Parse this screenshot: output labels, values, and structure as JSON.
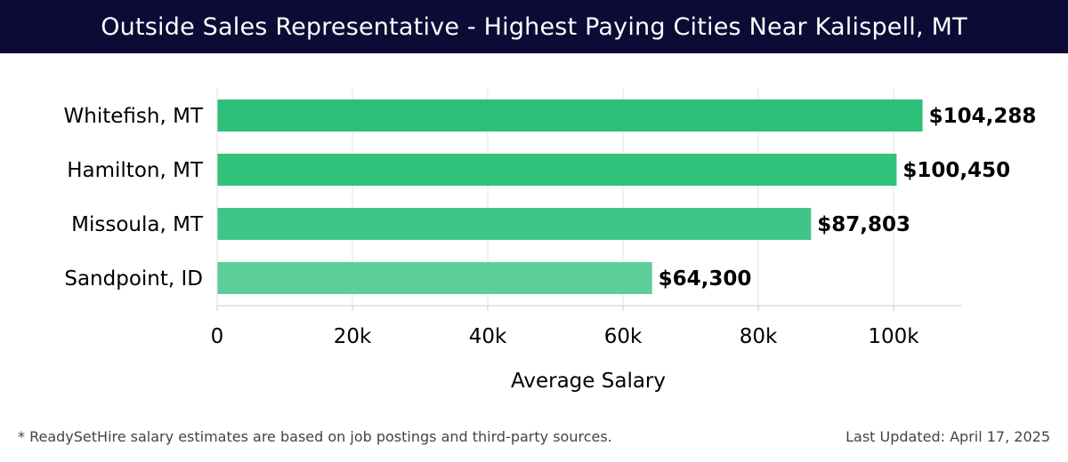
{
  "header": {
    "title": "Outside Sales Representative - Highest Paying Cities Near Kalispell, MT"
  },
  "chart_data": {
    "type": "bar",
    "orientation": "horizontal",
    "categories": [
      "Whitefish, MT",
      "Hamilton, MT",
      "Missoula, MT",
      "Sandpoint, ID"
    ],
    "values": [
      104288,
      100450,
      87803,
      64300
    ],
    "value_labels": [
      "$104,288",
      "$100,450",
      "$87,803",
      "$64,300"
    ],
    "bar_colors": [
      "#2bbf78",
      "#31c27c",
      "#3fc687",
      "#5ccf98"
    ],
    "xlabel": "Average Salary",
    "ylabel": "",
    "xlim": [
      0,
      110000
    ],
    "xticks": [
      0,
      20000,
      40000,
      60000,
      80000,
      100000
    ],
    "xtick_labels": [
      "0",
      "20k",
      "40k",
      "60k",
      "80k",
      "100k"
    ],
    "grid": true
  },
  "footer": {
    "note": "* ReadySetHire salary estimates are based on job postings and third-party sources.",
    "updated": "Last Updated: April 17, 2025"
  }
}
